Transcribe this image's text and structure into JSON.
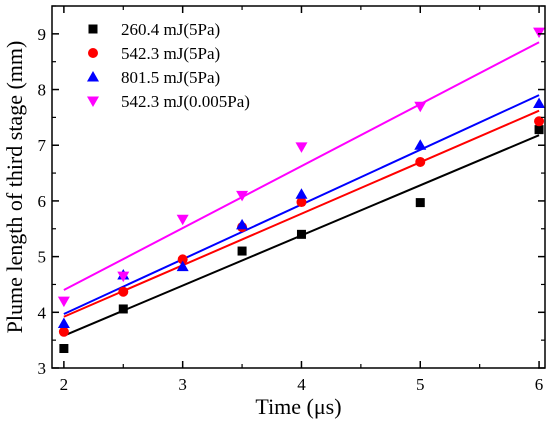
{
  "chart_data": {
    "type": "scatter",
    "xlabel": "Time (μs)",
    "ylabel": "Plume length of third stage (mm)",
    "xlim": [
      1.9,
      6.05
    ],
    "ylim": [
      3,
      9.5
    ],
    "xticks": [
      2,
      3,
      4,
      5,
      6
    ],
    "yticks": [
      3,
      4,
      5,
      6,
      7,
      8,
      9
    ],
    "xtick_labels": [
      "2",
      "3",
      "4",
      "5",
      "6"
    ],
    "ytick_labels": [
      "3",
      "4",
      "5",
      "6",
      "7",
      "8",
      "9"
    ],
    "legend_position": "top-left",
    "grid": false,
    "series": [
      {
        "name": "260.4 mJ(5Pa)",
        "marker": "square",
        "color": "#000000",
        "points": [
          [
            2,
            3.35
          ],
          [
            2.5,
            4.06
          ],
          [
            3.5,
            5.1
          ],
          [
            4,
            5.4
          ],
          [
            5,
            5.97
          ],
          [
            6,
            7.28
          ]
        ],
        "fit": [
          [
            2,
            3.58
          ],
          [
            6,
            7.18
          ]
        ]
      },
      {
        "name": "542.3 mJ(5Pa)",
        "marker": "circle",
        "color": "#ff0000",
        "points": [
          [
            2,
            3.65
          ],
          [
            2.5,
            4.37
          ],
          [
            3,
            4.95
          ],
          [
            3.5,
            5.53
          ],
          [
            4,
            5.98
          ],
          [
            5,
            6.7
          ],
          [
            6,
            7.43
          ]
        ],
        "fit": [
          [
            2,
            3.92
          ],
          [
            6,
            7.62
          ]
        ]
      },
      {
        "name": "801.5 mJ(5Pa)",
        "marker": "triangle-up",
        "color": "#0000ff",
        "points": [
          [
            2,
            3.8
          ],
          [
            2.5,
            4.67
          ],
          [
            3,
            4.82
          ],
          [
            3.5,
            5.57
          ],
          [
            4,
            6.12
          ],
          [
            5,
            7.0
          ],
          [
            6,
            7.75
          ]
        ],
        "fit": [
          [
            2,
            3.97
          ],
          [
            6,
            7.9
          ]
        ]
      },
      {
        "name": "542.3 mJ(0.005Pa)",
        "marker": "triangle-down",
        "color": "#ff00ff",
        "points": [
          [
            2,
            4.2
          ],
          [
            2.5,
            4.65
          ],
          [
            3,
            5.67
          ],
          [
            3.5,
            6.1
          ],
          [
            4,
            6.97
          ],
          [
            5,
            7.7
          ],
          [
            6,
            9.03
          ]
        ],
        "fit": [
          [
            2,
            4.4
          ],
          [
            6,
            8.85
          ]
        ]
      }
    ]
  }
}
